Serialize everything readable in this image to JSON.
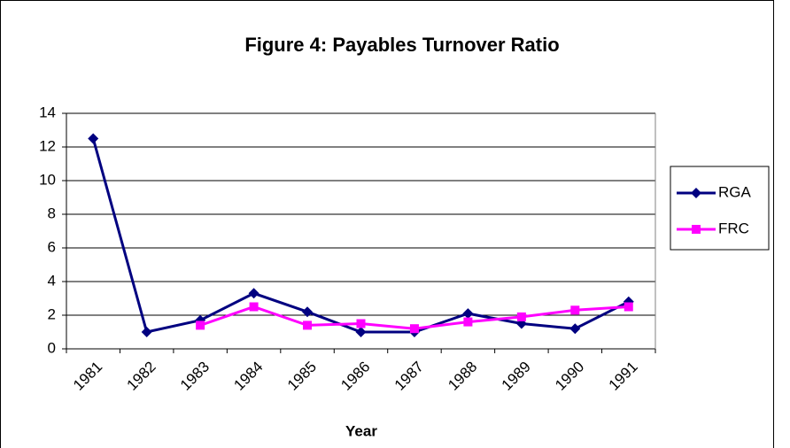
{
  "chart_data": {
    "type": "line",
    "title": "Figure 4: Payables Turnover Ratio",
    "x_label": "Year",
    "categories": [
      "1981",
      "1982",
      "1983",
      "1984",
      "1985",
      "1986",
      "1987",
      "1988",
      "1989",
      "1990",
      "1991"
    ],
    "series": [
      {
        "name": "RGA",
        "color": "#000080",
        "marker": "diamond",
        "values": [
          12.5,
          1.0,
          1.7,
          3.3,
          2.2,
          1.0,
          1.0,
          2.1,
          1.5,
          1.2,
          2.8
        ]
      },
      {
        "name": "FRC",
        "color": "#ff00ff",
        "marker": "square",
        "values": [
          null,
          null,
          1.4,
          2.5,
          1.4,
          1.5,
          1.2,
          1.6,
          1.9,
          2.3,
          2.5
        ]
      }
    ],
    "ylim": [
      0,
      14
    ],
    "yticks": [
      0,
      2,
      4,
      6,
      8,
      10,
      12,
      14
    ],
    "grid": true,
    "legend": "right"
  }
}
